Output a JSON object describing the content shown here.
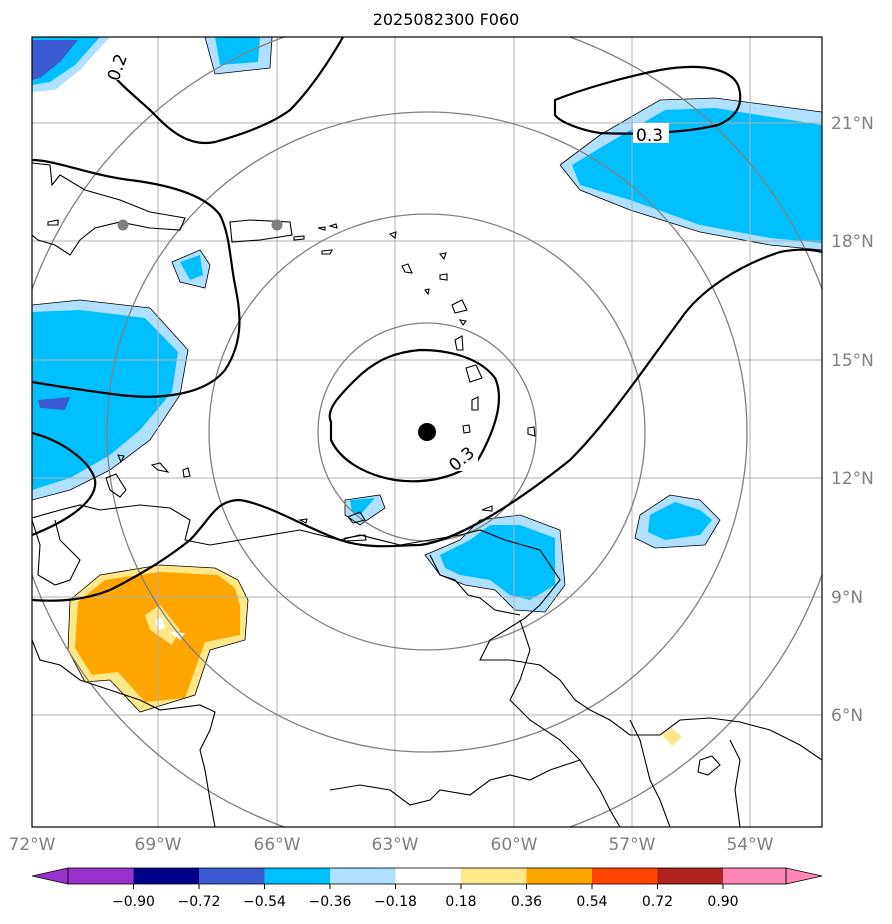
{
  "title": "2025082300 F060",
  "lon_ticks": [
    "72°W",
    "69°W",
    "66°W",
    "63°W",
    "60°W",
    "57°W",
    "54°W"
  ],
  "lat_ticks": [
    "21°N",
    "18°N",
    "15°N",
    "12°N",
    "9°N",
    "6°N"
  ],
  "contour_labels": [
    "0.2",
    "0.3",
    "0.3"
  ],
  "colorbar": {
    "ticks": [
      "−0.90",
      "−0.72",
      "−0.54",
      "−0.36",
      "−0.18",
      "0.18",
      "0.36",
      "0.54",
      "0.72",
      "0.90"
    ],
    "colors": [
      "#9932cc",
      "#00008b",
      "#3b5bd3",
      "#00bfff",
      "#b0e0ff",
      "#ffffff",
      "#ffe88a",
      "#ffa500",
      "#ff4500",
      "#b22222",
      "#ff85b5"
    ]
  },
  "colors": {
    "grid": "#b0b0b0",
    "ring": "#808080",
    "coast": "#000000"
  },
  "markers": {
    "center": "storm-center",
    "cities": [
      "city-dot",
      "city-dot"
    ]
  }
}
